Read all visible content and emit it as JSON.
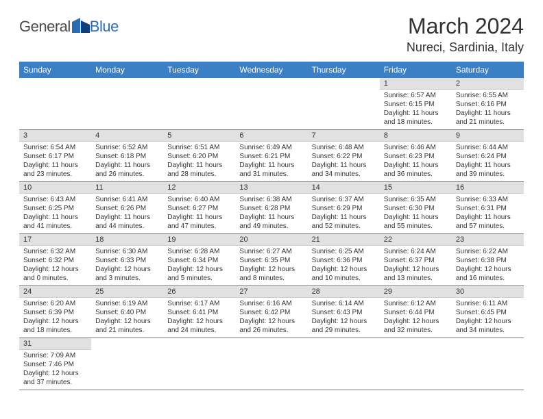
{
  "logo": {
    "part1": "General",
    "part2": "Blue"
  },
  "title": "March 2024",
  "subtitle": "Nureci, Sardinia, Italy",
  "colors": {
    "header_bg": "#3b7fc4",
    "header_fg": "#ffffff",
    "daynum_bg": "#e1e1e1",
    "row_border": "#3b7fc4",
    "text": "#333333",
    "logo_gray": "#4a4a4a",
    "logo_blue": "#2a6db5"
  },
  "weekdays": [
    "Sunday",
    "Monday",
    "Tuesday",
    "Wednesday",
    "Thursday",
    "Friday",
    "Saturday"
  ],
  "weeks": [
    [
      null,
      null,
      null,
      null,
      null,
      {
        "n": "1",
        "sunrise": "Sunrise: 6:57 AM",
        "sunset": "Sunset: 6:15 PM",
        "daylight": "Daylight: 11 hours and 18 minutes."
      },
      {
        "n": "2",
        "sunrise": "Sunrise: 6:55 AM",
        "sunset": "Sunset: 6:16 PM",
        "daylight": "Daylight: 11 hours and 21 minutes."
      }
    ],
    [
      {
        "n": "3",
        "sunrise": "Sunrise: 6:54 AM",
        "sunset": "Sunset: 6:17 PM",
        "daylight": "Daylight: 11 hours and 23 minutes."
      },
      {
        "n": "4",
        "sunrise": "Sunrise: 6:52 AM",
        "sunset": "Sunset: 6:18 PM",
        "daylight": "Daylight: 11 hours and 26 minutes."
      },
      {
        "n": "5",
        "sunrise": "Sunrise: 6:51 AM",
        "sunset": "Sunset: 6:20 PM",
        "daylight": "Daylight: 11 hours and 28 minutes."
      },
      {
        "n": "6",
        "sunrise": "Sunrise: 6:49 AM",
        "sunset": "Sunset: 6:21 PM",
        "daylight": "Daylight: 11 hours and 31 minutes."
      },
      {
        "n": "7",
        "sunrise": "Sunrise: 6:48 AM",
        "sunset": "Sunset: 6:22 PM",
        "daylight": "Daylight: 11 hours and 34 minutes."
      },
      {
        "n": "8",
        "sunrise": "Sunrise: 6:46 AM",
        "sunset": "Sunset: 6:23 PM",
        "daylight": "Daylight: 11 hours and 36 minutes."
      },
      {
        "n": "9",
        "sunrise": "Sunrise: 6:44 AM",
        "sunset": "Sunset: 6:24 PM",
        "daylight": "Daylight: 11 hours and 39 minutes."
      }
    ],
    [
      {
        "n": "10",
        "sunrise": "Sunrise: 6:43 AM",
        "sunset": "Sunset: 6:25 PM",
        "daylight": "Daylight: 11 hours and 41 minutes."
      },
      {
        "n": "11",
        "sunrise": "Sunrise: 6:41 AM",
        "sunset": "Sunset: 6:26 PM",
        "daylight": "Daylight: 11 hours and 44 minutes."
      },
      {
        "n": "12",
        "sunrise": "Sunrise: 6:40 AM",
        "sunset": "Sunset: 6:27 PM",
        "daylight": "Daylight: 11 hours and 47 minutes."
      },
      {
        "n": "13",
        "sunrise": "Sunrise: 6:38 AM",
        "sunset": "Sunset: 6:28 PM",
        "daylight": "Daylight: 11 hours and 49 minutes."
      },
      {
        "n": "14",
        "sunrise": "Sunrise: 6:37 AM",
        "sunset": "Sunset: 6:29 PM",
        "daylight": "Daylight: 11 hours and 52 minutes."
      },
      {
        "n": "15",
        "sunrise": "Sunrise: 6:35 AM",
        "sunset": "Sunset: 6:30 PM",
        "daylight": "Daylight: 11 hours and 55 minutes."
      },
      {
        "n": "16",
        "sunrise": "Sunrise: 6:33 AM",
        "sunset": "Sunset: 6:31 PM",
        "daylight": "Daylight: 11 hours and 57 minutes."
      }
    ],
    [
      {
        "n": "17",
        "sunrise": "Sunrise: 6:32 AM",
        "sunset": "Sunset: 6:32 PM",
        "daylight": "Daylight: 12 hours and 0 minutes."
      },
      {
        "n": "18",
        "sunrise": "Sunrise: 6:30 AM",
        "sunset": "Sunset: 6:33 PM",
        "daylight": "Daylight: 12 hours and 3 minutes."
      },
      {
        "n": "19",
        "sunrise": "Sunrise: 6:28 AM",
        "sunset": "Sunset: 6:34 PM",
        "daylight": "Daylight: 12 hours and 5 minutes."
      },
      {
        "n": "20",
        "sunrise": "Sunrise: 6:27 AM",
        "sunset": "Sunset: 6:35 PM",
        "daylight": "Daylight: 12 hours and 8 minutes."
      },
      {
        "n": "21",
        "sunrise": "Sunrise: 6:25 AM",
        "sunset": "Sunset: 6:36 PM",
        "daylight": "Daylight: 12 hours and 10 minutes."
      },
      {
        "n": "22",
        "sunrise": "Sunrise: 6:24 AM",
        "sunset": "Sunset: 6:37 PM",
        "daylight": "Daylight: 12 hours and 13 minutes."
      },
      {
        "n": "23",
        "sunrise": "Sunrise: 6:22 AM",
        "sunset": "Sunset: 6:38 PM",
        "daylight": "Daylight: 12 hours and 16 minutes."
      }
    ],
    [
      {
        "n": "24",
        "sunrise": "Sunrise: 6:20 AM",
        "sunset": "Sunset: 6:39 PM",
        "daylight": "Daylight: 12 hours and 18 minutes."
      },
      {
        "n": "25",
        "sunrise": "Sunrise: 6:19 AM",
        "sunset": "Sunset: 6:40 PM",
        "daylight": "Daylight: 12 hours and 21 minutes."
      },
      {
        "n": "26",
        "sunrise": "Sunrise: 6:17 AM",
        "sunset": "Sunset: 6:41 PM",
        "daylight": "Daylight: 12 hours and 24 minutes."
      },
      {
        "n": "27",
        "sunrise": "Sunrise: 6:16 AM",
        "sunset": "Sunset: 6:42 PM",
        "daylight": "Daylight: 12 hours and 26 minutes."
      },
      {
        "n": "28",
        "sunrise": "Sunrise: 6:14 AM",
        "sunset": "Sunset: 6:43 PM",
        "daylight": "Daylight: 12 hours and 29 minutes."
      },
      {
        "n": "29",
        "sunrise": "Sunrise: 6:12 AM",
        "sunset": "Sunset: 6:44 PM",
        "daylight": "Daylight: 12 hours and 32 minutes."
      },
      {
        "n": "30",
        "sunrise": "Sunrise: 6:11 AM",
        "sunset": "Sunset: 6:45 PM",
        "daylight": "Daylight: 12 hours and 34 minutes."
      }
    ],
    [
      {
        "n": "31",
        "sunrise": "Sunrise: 7:09 AM",
        "sunset": "Sunset: 7:46 PM",
        "daylight": "Daylight: 12 hours and 37 minutes."
      },
      null,
      null,
      null,
      null,
      null,
      null
    ]
  ]
}
